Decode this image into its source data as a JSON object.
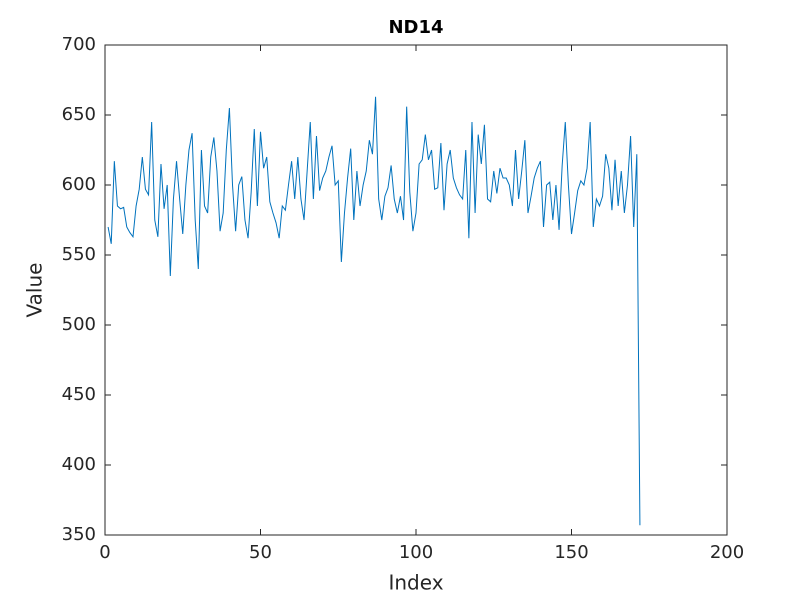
{
  "chart_data": {
    "type": "line",
    "title": "ND14",
    "xlabel": "Index",
    "ylabel": "Value",
    "x": [
      1,
      2,
      3,
      4,
      5,
      6,
      7,
      8,
      9,
      10,
      11,
      12,
      13,
      14,
      15,
      16,
      17,
      18,
      19,
      20,
      21,
      22,
      23,
      24,
      25,
      26,
      27,
      28,
      29,
      30,
      31,
      32,
      33,
      34,
      35,
      36,
      37,
      38,
      39,
      40,
      41,
      42,
      43,
      44,
      45,
      46,
      47,
      48,
      49,
      50,
      51,
      52,
      53,
      54,
      55,
      56,
      57,
      58,
      59,
      60,
      61,
      62,
      63,
      64,
      65,
      66,
      67,
      68,
      69,
      70,
      71,
      72,
      73,
      74,
      75,
      76,
      77,
      78,
      79,
      80,
      81,
      82,
      83,
      84,
      85,
      86,
      87,
      88,
      89,
      90,
      91,
      92,
      93,
      94,
      95,
      96,
      97,
      98,
      99,
      100,
      101,
      102,
      103,
      104,
      105,
      106,
      107,
      108,
      109,
      110,
      111,
      112,
      113,
      114,
      115,
      116,
      117,
      118,
      119,
      120,
      121,
      122,
      123,
      124,
      125,
      126,
      127,
      128,
      129,
      130,
      131,
      132,
      133,
      134,
      135,
      136,
      137,
      138,
      139,
      140,
      141,
      142,
      143,
      144,
      145,
      146,
      147,
      148,
      149,
      150,
      151,
      152,
      153,
      154,
      155,
      156,
      157,
      158,
      159,
      160,
      161,
      162,
      163,
      164,
      165,
      166,
      167,
      168,
      169,
      170,
      171,
      172
    ],
    "series": [
      {
        "name": "ND14",
        "color": "#0072bd",
        "values": [
          570,
          558,
          617,
          585,
          583,
          584,
          570,
          566,
          563,
          585,
          597,
          620,
          597,
          593,
          645,
          575,
          563,
          615,
          583,
          600,
          535,
          590,
          617,
          590,
          565,
          600,
          625,
          637,
          575,
          540,
          625,
          585,
          580,
          620,
          634,
          610,
          567,
          580,
          625,
          655,
          600,
          567,
          600,
          606,
          575,
          562,
          595,
          640,
          585,
          638,
          612,
          620,
          588,
          580,
          573,
          562,
          585,
          582,
          600,
          617,
          590,
          620,
          590,
          575,
          610,
          645,
          590,
          635,
          596,
          605,
          610,
          620,
          628,
          600,
          603,
          545,
          580,
          605,
          626,
          575,
          610,
          585,
          600,
          610,
          632,
          622,
          663,
          590,
          575,
          592,
          598,
          614,
          590,
          580,
          592,
          575,
          656,
          595,
          567,
          580,
          615,
          618,
          636,
          618,
          625,
          597,
          598,
          630,
          582,
          615,
          625,
          605,
          598,
          593,
          590,
          625,
          562,
          645,
          580,
          636,
          615,
          643,
          590,
          588,
          610,
          594,
          612,
          605,
          605,
          600,
          585,
          625,
          590,
          610,
          632,
          580,
          592,
          605,
          612,
          617,
          570,
          600,
          602,
          575,
          600,
          568,
          614,
          645,
          600,
          565,
          580,
          596,
          603,
          600,
          612,
          645,
          570,
          590,
          585,
          592,
          622,
          612,
          582,
          618,
          585,
          610,
          580,
          600,
          635,
          570,
          622,
          357
        ]
      }
    ],
    "xlim": [
      0,
      200
    ],
    "xticks": [
      0,
      50,
      100,
      150,
      200
    ],
    "ylim": [
      350,
      700
    ],
    "yticks": [
      350,
      400,
      450,
      500,
      550,
      600,
      650,
      700
    ]
  }
}
